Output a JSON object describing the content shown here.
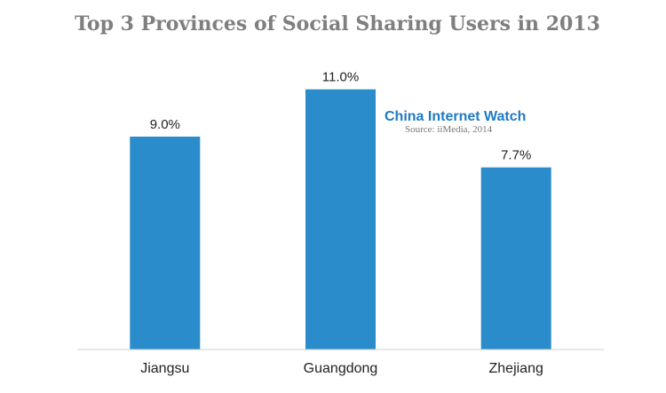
{
  "chart_data": {
    "type": "bar",
    "title": "Top 3 Provinces of Social Sharing Users in 2013",
    "categories": [
      "Jiangsu",
      "Guangdong",
      "Zhejiang"
    ],
    "values": [
      9.0,
      11.0,
      7.7
    ],
    "value_labels": [
      "9.0%",
      "11.0%",
      "7.7%"
    ],
    "unit": "%",
    "xlabel": "",
    "ylabel": "",
    "ylim": [
      0,
      12
    ],
    "grid": false,
    "legend": "none",
    "bar_color": "#2a8ccb"
  },
  "watermark": {
    "brand": "China Internet  Watch",
    "source": "Source: iiMedia, 2014"
  }
}
